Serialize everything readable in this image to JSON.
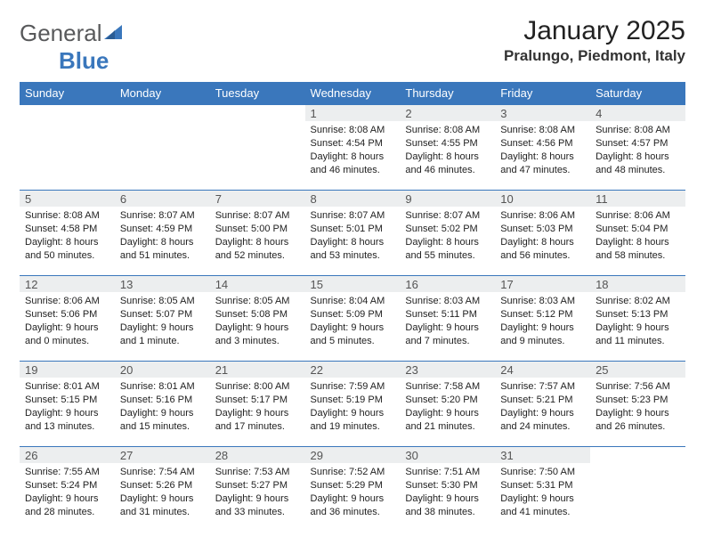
{
  "logo": {
    "text_gray": "General",
    "text_blue": "Blue"
  },
  "header": {
    "month_title": "January 2025",
    "location": "Pralungo, Piedmont, Italy"
  },
  "colors": {
    "brand_blue": "#3a77bc",
    "header_row_bg": "#3a77bc",
    "daynum_bg": "#eceeef",
    "text": "#222222"
  },
  "weekdays": [
    "Sunday",
    "Monday",
    "Tuesday",
    "Wednesday",
    "Thursday",
    "Friday",
    "Saturday"
  ],
  "weeks": [
    [
      {
        "empty": true
      },
      {
        "empty": true
      },
      {
        "empty": true
      },
      {
        "day": "1",
        "sunrise": "8:08 AM",
        "sunset": "4:54 PM",
        "daylight": "8 hours and 46 minutes."
      },
      {
        "day": "2",
        "sunrise": "8:08 AM",
        "sunset": "4:55 PM",
        "daylight": "8 hours and 46 minutes."
      },
      {
        "day": "3",
        "sunrise": "8:08 AM",
        "sunset": "4:56 PM",
        "daylight": "8 hours and 47 minutes."
      },
      {
        "day": "4",
        "sunrise": "8:08 AM",
        "sunset": "4:57 PM",
        "daylight": "8 hours and 48 minutes."
      }
    ],
    [
      {
        "day": "5",
        "sunrise": "8:08 AM",
        "sunset": "4:58 PM",
        "daylight": "8 hours and 50 minutes."
      },
      {
        "day": "6",
        "sunrise": "8:07 AM",
        "sunset": "4:59 PM",
        "daylight": "8 hours and 51 minutes."
      },
      {
        "day": "7",
        "sunrise": "8:07 AM",
        "sunset": "5:00 PM",
        "daylight": "8 hours and 52 minutes."
      },
      {
        "day": "8",
        "sunrise": "8:07 AM",
        "sunset": "5:01 PM",
        "daylight": "8 hours and 53 minutes."
      },
      {
        "day": "9",
        "sunrise": "8:07 AM",
        "sunset": "5:02 PM",
        "daylight": "8 hours and 55 minutes."
      },
      {
        "day": "10",
        "sunrise": "8:06 AM",
        "sunset": "5:03 PM",
        "daylight": "8 hours and 56 minutes."
      },
      {
        "day": "11",
        "sunrise": "8:06 AM",
        "sunset": "5:04 PM",
        "daylight": "8 hours and 58 minutes."
      }
    ],
    [
      {
        "day": "12",
        "sunrise": "8:06 AM",
        "sunset": "5:06 PM",
        "daylight": "9 hours and 0 minutes."
      },
      {
        "day": "13",
        "sunrise": "8:05 AM",
        "sunset": "5:07 PM",
        "daylight": "9 hours and 1 minute."
      },
      {
        "day": "14",
        "sunrise": "8:05 AM",
        "sunset": "5:08 PM",
        "daylight": "9 hours and 3 minutes."
      },
      {
        "day": "15",
        "sunrise": "8:04 AM",
        "sunset": "5:09 PM",
        "daylight": "9 hours and 5 minutes."
      },
      {
        "day": "16",
        "sunrise": "8:03 AM",
        "sunset": "5:11 PM",
        "daylight": "9 hours and 7 minutes."
      },
      {
        "day": "17",
        "sunrise": "8:03 AM",
        "sunset": "5:12 PM",
        "daylight": "9 hours and 9 minutes."
      },
      {
        "day": "18",
        "sunrise": "8:02 AM",
        "sunset": "5:13 PM",
        "daylight": "9 hours and 11 minutes."
      }
    ],
    [
      {
        "day": "19",
        "sunrise": "8:01 AM",
        "sunset": "5:15 PM",
        "daylight": "9 hours and 13 minutes."
      },
      {
        "day": "20",
        "sunrise": "8:01 AM",
        "sunset": "5:16 PM",
        "daylight": "9 hours and 15 minutes."
      },
      {
        "day": "21",
        "sunrise": "8:00 AM",
        "sunset": "5:17 PM",
        "daylight": "9 hours and 17 minutes."
      },
      {
        "day": "22",
        "sunrise": "7:59 AM",
        "sunset": "5:19 PM",
        "daylight": "9 hours and 19 minutes."
      },
      {
        "day": "23",
        "sunrise": "7:58 AM",
        "sunset": "5:20 PM",
        "daylight": "9 hours and 21 minutes."
      },
      {
        "day": "24",
        "sunrise": "7:57 AM",
        "sunset": "5:21 PM",
        "daylight": "9 hours and 24 minutes."
      },
      {
        "day": "25",
        "sunrise": "7:56 AM",
        "sunset": "5:23 PM",
        "daylight": "9 hours and 26 minutes."
      }
    ],
    [
      {
        "day": "26",
        "sunrise": "7:55 AM",
        "sunset": "5:24 PM",
        "daylight": "9 hours and 28 minutes."
      },
      {
        "day": "27",
        "sunrise": "7:54 AM",
        "sunset": "5:26 PM",
        "daylight": "9 hours and 31 minutes."
      },
      {
        "day": "28",
        "sunrise": "7:53 AM",
        "sunset": "5:27 PM",
        "daylight": "9 hours and 33 minutes."
      },
      {
        "day": "29",
        "sunrise": "7:52 AM",
        "sunset": "5:29 PM",
        "daylight": "9 hours and 36 minutes."
      },
      {
        "day": "30",
        "sunrise": "7:51 AM",
        "sunset": "5:30 PM",
        "daylight": "9 hours and 38 minutes."
      },
      {
        "day": "31",
        "sunrise": "7:50 AM",
        "sunset": "5:31 PM",
        "daylight": "9 hours and 41 minutes."
      },
      {
        "empty": true
      }
    ]
  ],
  "labels": {
    "sunrise": "Sunrise:",
    "sunset": "Sunset:",
    "daylight": "Daylight:"
  }
}
